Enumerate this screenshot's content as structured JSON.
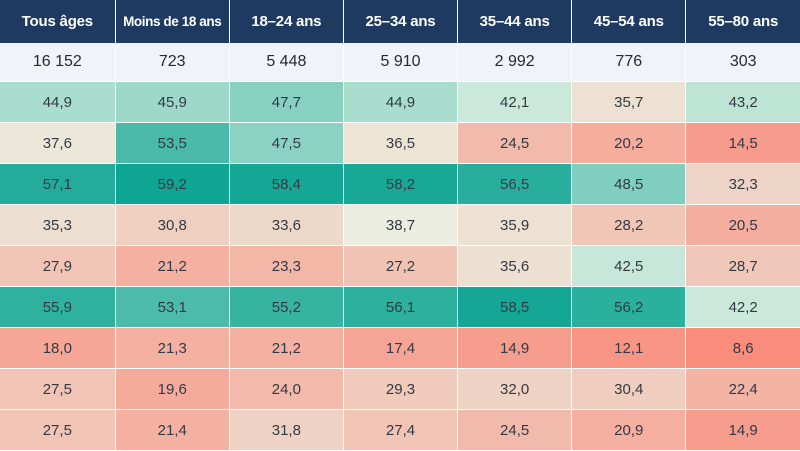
{
  "chart_data": {
    "type": "table",
    "columns": [
      "Tous âges",
      "Moins de 18 ans",
      "18–24 ans",
      "25–34 ans",
      "35–44 ans",
      "45–54 ans",
      "55–80 ans"
    ],
    "counts": [
      "16 152",
      "723",
      "5 448",
      "5 910",
      "2 992",
      "776",
      "303"
    ],
    "rows": [
      [
        "44,9",
        "45,9",
        "47,7",
        "44,9",
        "42,1",
        "35,7",
        "43,2"
      ],
      [
        "37,6",
        "53,5",
        "47,5",
        "36,5",
        "24,5",
        "20,2",
        "14,5"
      ],
      [
        "57,1",
        "59,2",
        "58,4",
        "58,2",
        "56,5",
        "48,5",
        "32,3"
      ],
      [
        "35,3",
        "30,8",
        "33,6",
        "38,7",
        "35,9",
        "28,2",
        "20,5"
      ],
      [
        "27,9",
        "21,2",
        "23,3",
        "27,2",
        "35,6",
        "42,5",
        "28,7"
      ],
      [
        "55,9",
        "53,1",
        "55,2",
        "56,1",
        "58,5",
        "56,2",
        "42,2"
      ],
      [
        "18,0",
        "21,3",
        "21,2",
        "17,4",
        "14,9",
        "12,1",
        "8,6"
      ],
      [
        "27,5",
        "19,6",
        "24,0",
        "29,3",
        "32,0",
        "30,4",
        "22,4"
      ],
      [
        "27,5",
        "21,4",
        "31,8",
        "27,4",
        "24,5",
        "20,9",
        "14,9"
      ]
    ],
    "colors": {
      "header_bg": "#1f3a60",
      "counts_bg": "#f0f3f8",
      "high": "#0fa593",
      "neutral": "#e9f4e6",
      "low": "#fa8c7c"
    }
  }
}
